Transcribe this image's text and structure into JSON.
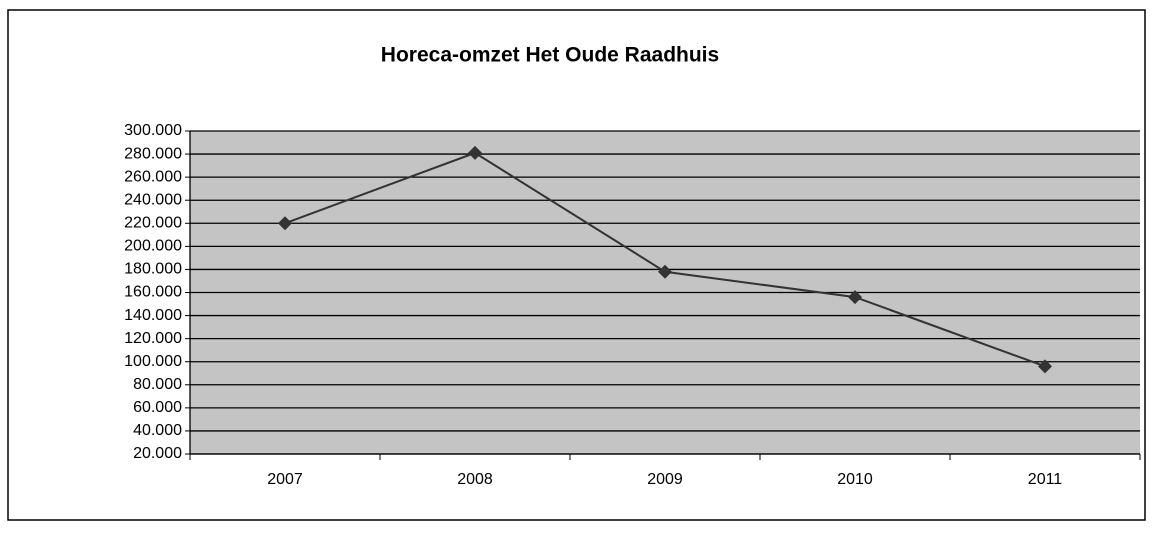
{
  "chart_data": {
    "type": "line",
    "title": "Horeca-omzet Het Oude Raadhuis",
    "categories": [
      "2007",
      "2008",
      "2009",
      "2010",
      "2011"
    ],
    "values": [
      220000,
      281000,
      178000,
      156000,
      96000
    ],
    "color": "#333333",
    "ylim": [
      20000,
      300000
    ],
    "yticks": [
      {
        "value": 20000,
        "label": "20.000"
      },
      {
        "value": 40000,
        "label": "40.000"
      },
      {
        "value": 60000,
        "label": "60.000"
      },
      {
        "value": 80000,
        "label": "80.000"
      },
      {
        "value": 100000,
        "label": "100.000"
      },
      {
        "value": 120000,
        "label": "120.000"
      },
      {
        "value": 140000,
        "label": "140.000"
      },
      {
        "value": 160000,
        "label": "160.000"
      },
      {
        "value": 180000,
        "label": "180.000"
      },
      {
        "value": 200000,
        "label": "200.000"
      },
      {
        "value": 220000,
        "label": "220.000"
      },
      {
        "value": 240000,
        "label": "240.000"
      },
      {
        "value": 260000,
        "label": "260.000"
      },
      {
        "value": 280000,
        "label": "280.000"
      },
      {
        "value": 300000,
        "label": "300.000"
      }
    ],
    "grid": true
  }
}
